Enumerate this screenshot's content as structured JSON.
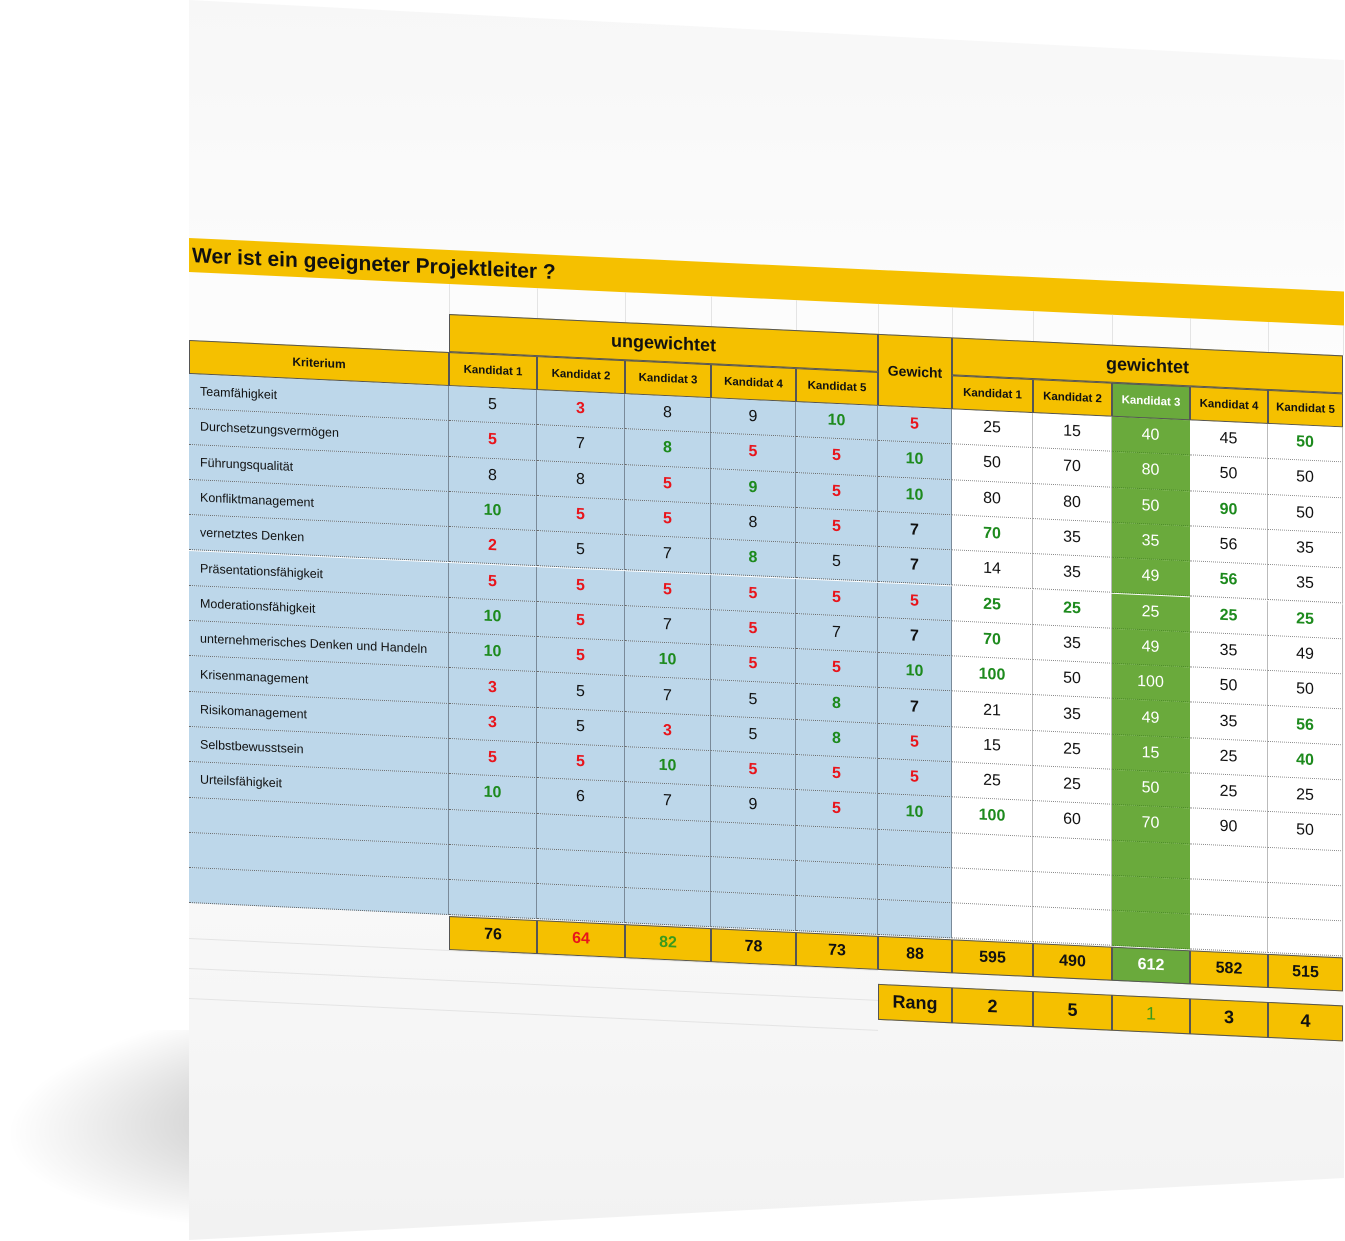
{
  "title": "Wer ist ein geeigneter Projektleiter ?",
  "headers": {
    "criterion": "Kriterium",
    "unweighted": "ungewichtet",
    "weight": "Gewicht",
    "weighted": "gewichtet",
    "candidates": [
      "Kandidat 1",
      "Kandidat 2",
      "Kandidat 3",
      "Kandidat 4",
      "Kandidat 5"
    ],
    "rank": "Rang"
  },
  "highlighted_candidate": 3,
  "colors": {
    "accent": "#f5c000",
    "input_bg": "#bdd7ea",
    "highlight": "#6aaa3c",
    "low": "#e8141b",
    "high": "#1d8a1d"
  },
  "rows": [
    {
      "criterion": "Teamfähigkeit",
      "scores": [
        "5",
        "3",
        "8",
        "9",
        "10"
      ],
      "weight": "5",
      "weighted": [
        "25",
        "15",
        "40",
        "45",
        "50"
      ]
    },
    {
      "criterion": "Durchsetzungsvermögen",
      "scores": [
        "5",
        "7",
        "8",
        "5",
        "5"
      ],
      "weight": "10",
      "weighted": [
        "50",
        "70",
        "80",
        "50",
        "50"
      ]
    },
    {
      "criterion": "Führungsqualität",
      "scores": [
        "8",
        "8",
        "5",
        "9",
        "5"
      ],
      "weight": "10",
      "weighted": [
        "80",
        "80",
        "50",
        "90",
        "50"
      ]
    },
    {
      "criterion": "Konfliktmanagement",
      "scores": [
        "10",
        "5",
        "5",
        "8",
        "5"
      ],
      "weight": "7",
      "weighted": [
        "70",
        "35",
        "35",
        "56",
        "35"
      ]
    },
    {
      "criterion": "vernetztes Denken",
      "scores": [
        "2",
        "5",
        "7",
        "8",
        "5"
      ],
      "weight": "7",
      "weighted": [
        "14",
        "35",
        "49",
        "56",
        "35"
      ]
    },
    {
      "criterion": "Präsentationsfähigkeit",
      "scores": [
        "5",
        "5",
        "5",
        "5",
        "5"
      ],
      "weight": "5",
      "weighted": [
        "25",
        "25",
        "25",
        "25",
        "25"
      ]
    },
    {
      "criterion": "Moderationsfähigkeit",
      "scores": [
        "10",
        "5",
        "7",
        "5",
        "7"
      ],
      "weight": "7",
      "weighted": [
        "70",
        "35",
        "49",
        "35",
        "49"
      ]
    },
    {
      "criterion": "unternehmerisches Denken und Handeln",
      "scores": [
        "10",
        "5",
        "10",
        "5",
        "5"
      ],
      "weight": "10",
      "weighted": [
        "100",
        "50",
        "100",
        "50",
        "50"
      ]
    },
    {
      "criterion": "Krisenmanagement",
      "scores": [
        "3",
        "5",
        "7",
        "5",
        "8"
      ],
      "weight": "7",
      "weighted": [
        "21",
        "35",
        "49",
        "35",
        "56"
      ]
    },
    {
      "criterion": "Risikomanagement",
      "scores": [
        "3",
        "5",
        "3",
        "5",
        "8"
      ],
      "weight": "5",
      "weighted": [
        "15",
        "25",
        "15",
        "25",
        "40"
      ]
    },
    {
      "criterion": "Selbstbewusstsein",
      "scores": [
        "5",
        "5",
        "10",
        "5",
        "5"
      ],
      "weight": "5",
      "weighted": [
        "25",
        "25",
        "50",
        "25",
        "25"
      ]
    },
    {
      "criterion": "Urteilsfähigkeit",
      "scores": [
        "10",
        "6",
        "7",
        "9",
        "5"
      ],
      "weight": "10",
      "weighted": [
        "100",
        "60",
        "70",
        "90",
        "50"
      ]
    }
  ],
  "empty_rows": 3,
  "totals": {
    "unweighted": [
      "76",
      "64",
      "82",
      "78",
      "73"
    ],
    "weight": "88",
    "weighted": [
      "595",
      "490",
      "612",
      "582",
      "515"
    ]
  },
  "ranks": [
    "2",
    "5",
    "1",
    "3",
    "4"
  ]
}
